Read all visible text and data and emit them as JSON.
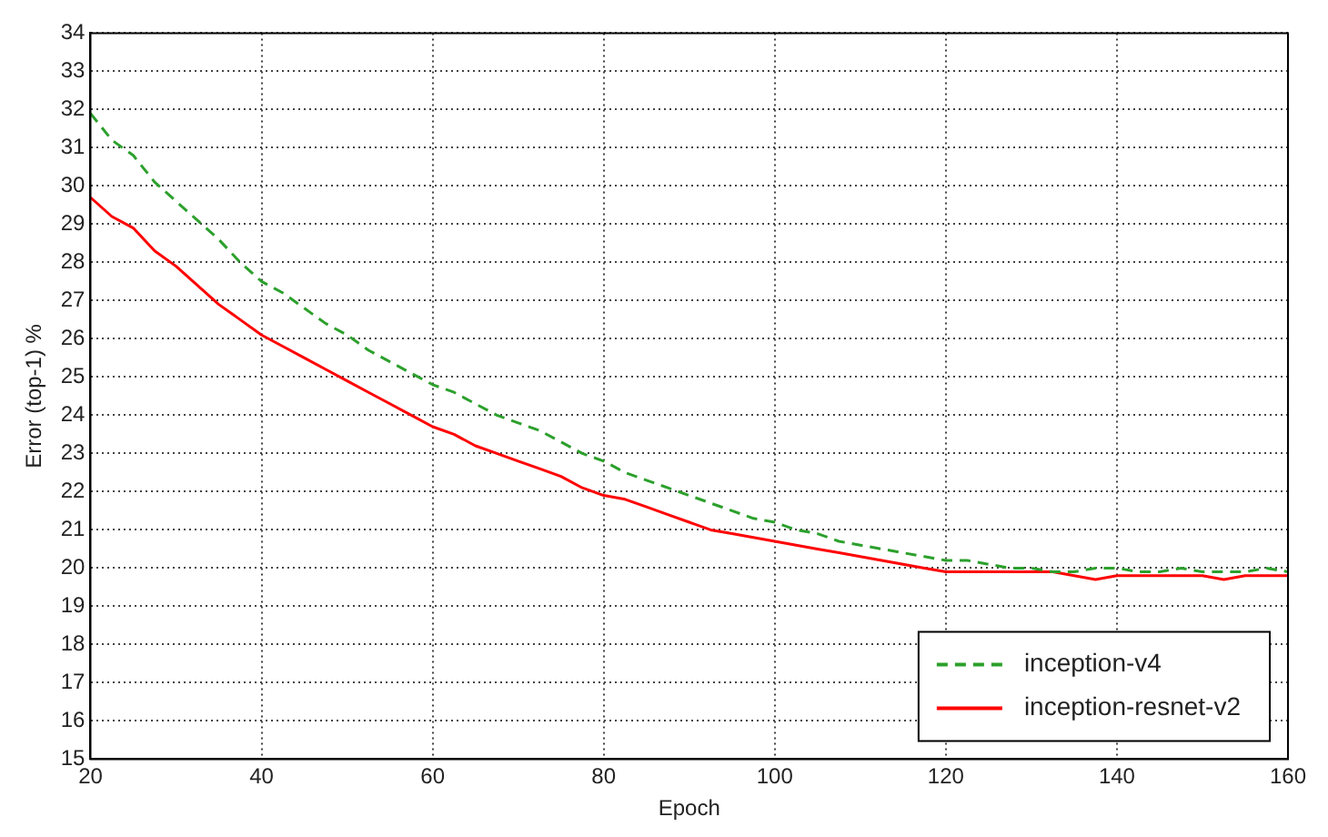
{
  "chart_data": {
    "type": "line",
    "xlabel": "Epoch",
    "ylabel": "Error (top-1) %",
    "xlim": [
      20,
      160
    ],
    "xticks": [
      20,
      40,
      60,
      80,
      100,
      120,
      140,
      160
    ],
    "ylim": [
      15,
      34
    ],
    "yticks": [
      15,
      16,
      17,
      18,
      19,
      20,
      21,
      22,
      23,
      24,
      25,
      26,
      27,
      28,
      29,
      30,
      31,
      32,
      33,
      34
    ],
    "grid": true,
    "legend": "bottom right",
    "x": [
      20,
      22.5,
      25,
      27.5,
      30,
      32.5,
      35,
      37.5,
      40,
      42.5,
      45,
      47.5,
      50,
      52.5,
      55,
      57.5,
      60,
      62.5,
      65,
      67.5,
      70,
      72.5,
      75,
      77.5,
      80,
      82.5,
      85,
      87.5,
      90,
      92.5,
      95,
      97.5,
      100,
      102.5,
      105,
      107.5,
      110,
      112.5,
      115,
      117.5,
      120,
      122.5,
      125,
      127.5,
      130,
      132.5,
      135,
      137.5,
      140,
      142.5,
      145,
      147.5,
      150,
      152.5,
      155,
      157.5,
      160
    ],
    "series": [
      {
        "name": "inception-v4",
        "color": "#2ca02c",
        "line_style": "dashed",
        "values": [
          31.9,
          31.2,
          30.8,
          30.1,
          29.6,
          29.1,
          28.6,
          28.0,
          27.5,
          27.2,
          26.8,
          26.4,
          26.1,
          25.7,
          25.4,
          25.1,
          24.8,
          24.6,
          24.3,
          24.0,
          23.8,
          23.6,
          23.3,
          23.0,
          22.8,
          22.5,
          22.3,
          22.1,
          21.9,
          21.7,
          21.5,
          21.3,
          21.2,
          21.0,
          20.9,
          20.7,
          20.6,
          20.5,
          20.4,
          20.3,
          20.2,
          20.2,
          20.1,
          20.0,
          20.0,
          19.9,
          19.9,
          20.0,
          20.0,
          19.9,
          19.9,
          20.0,
          19.9,
          19.9,
          19.9,
          20.0,
          19.9
        ]
      },
      {
        "name": "inception-resnet-v2",
        "color": "#ff0000",
        "line_style": "solid",
        "values": [
          29.7,
          29.2,
          28.9,
          28.3,
          27.9,
          27.4,
          26.9,
          26.5,
          26.1,
          25.8,
          25.5,
          25.2,
          24.9,
          24.6,
          24.3,
          24.0,
          23.7,
          23.5,
          23.2,
          23.0,
          22.8,
          22.6,
          22.4,
          22.1,
          21.9,
          21.8,
          21.6,
          21.4,
          21.2,
          21.0,
          20.9,
          20.8,
          20.7,
          20.6,
          20.5,
          20.4,
          20.3,
          20.2,
          20.1,
          20.0,
          19.9,
          19.9,
          19.9,
          19.9,
          19.9,
          19.9,
          19.8,
          19.7,
          19.8,
          19.8,
          19.8,
          19.8,
          19.8,
          19.7,
          19.8,
          19.8,
          19.8
        ]
      }
    ]
  }
}
